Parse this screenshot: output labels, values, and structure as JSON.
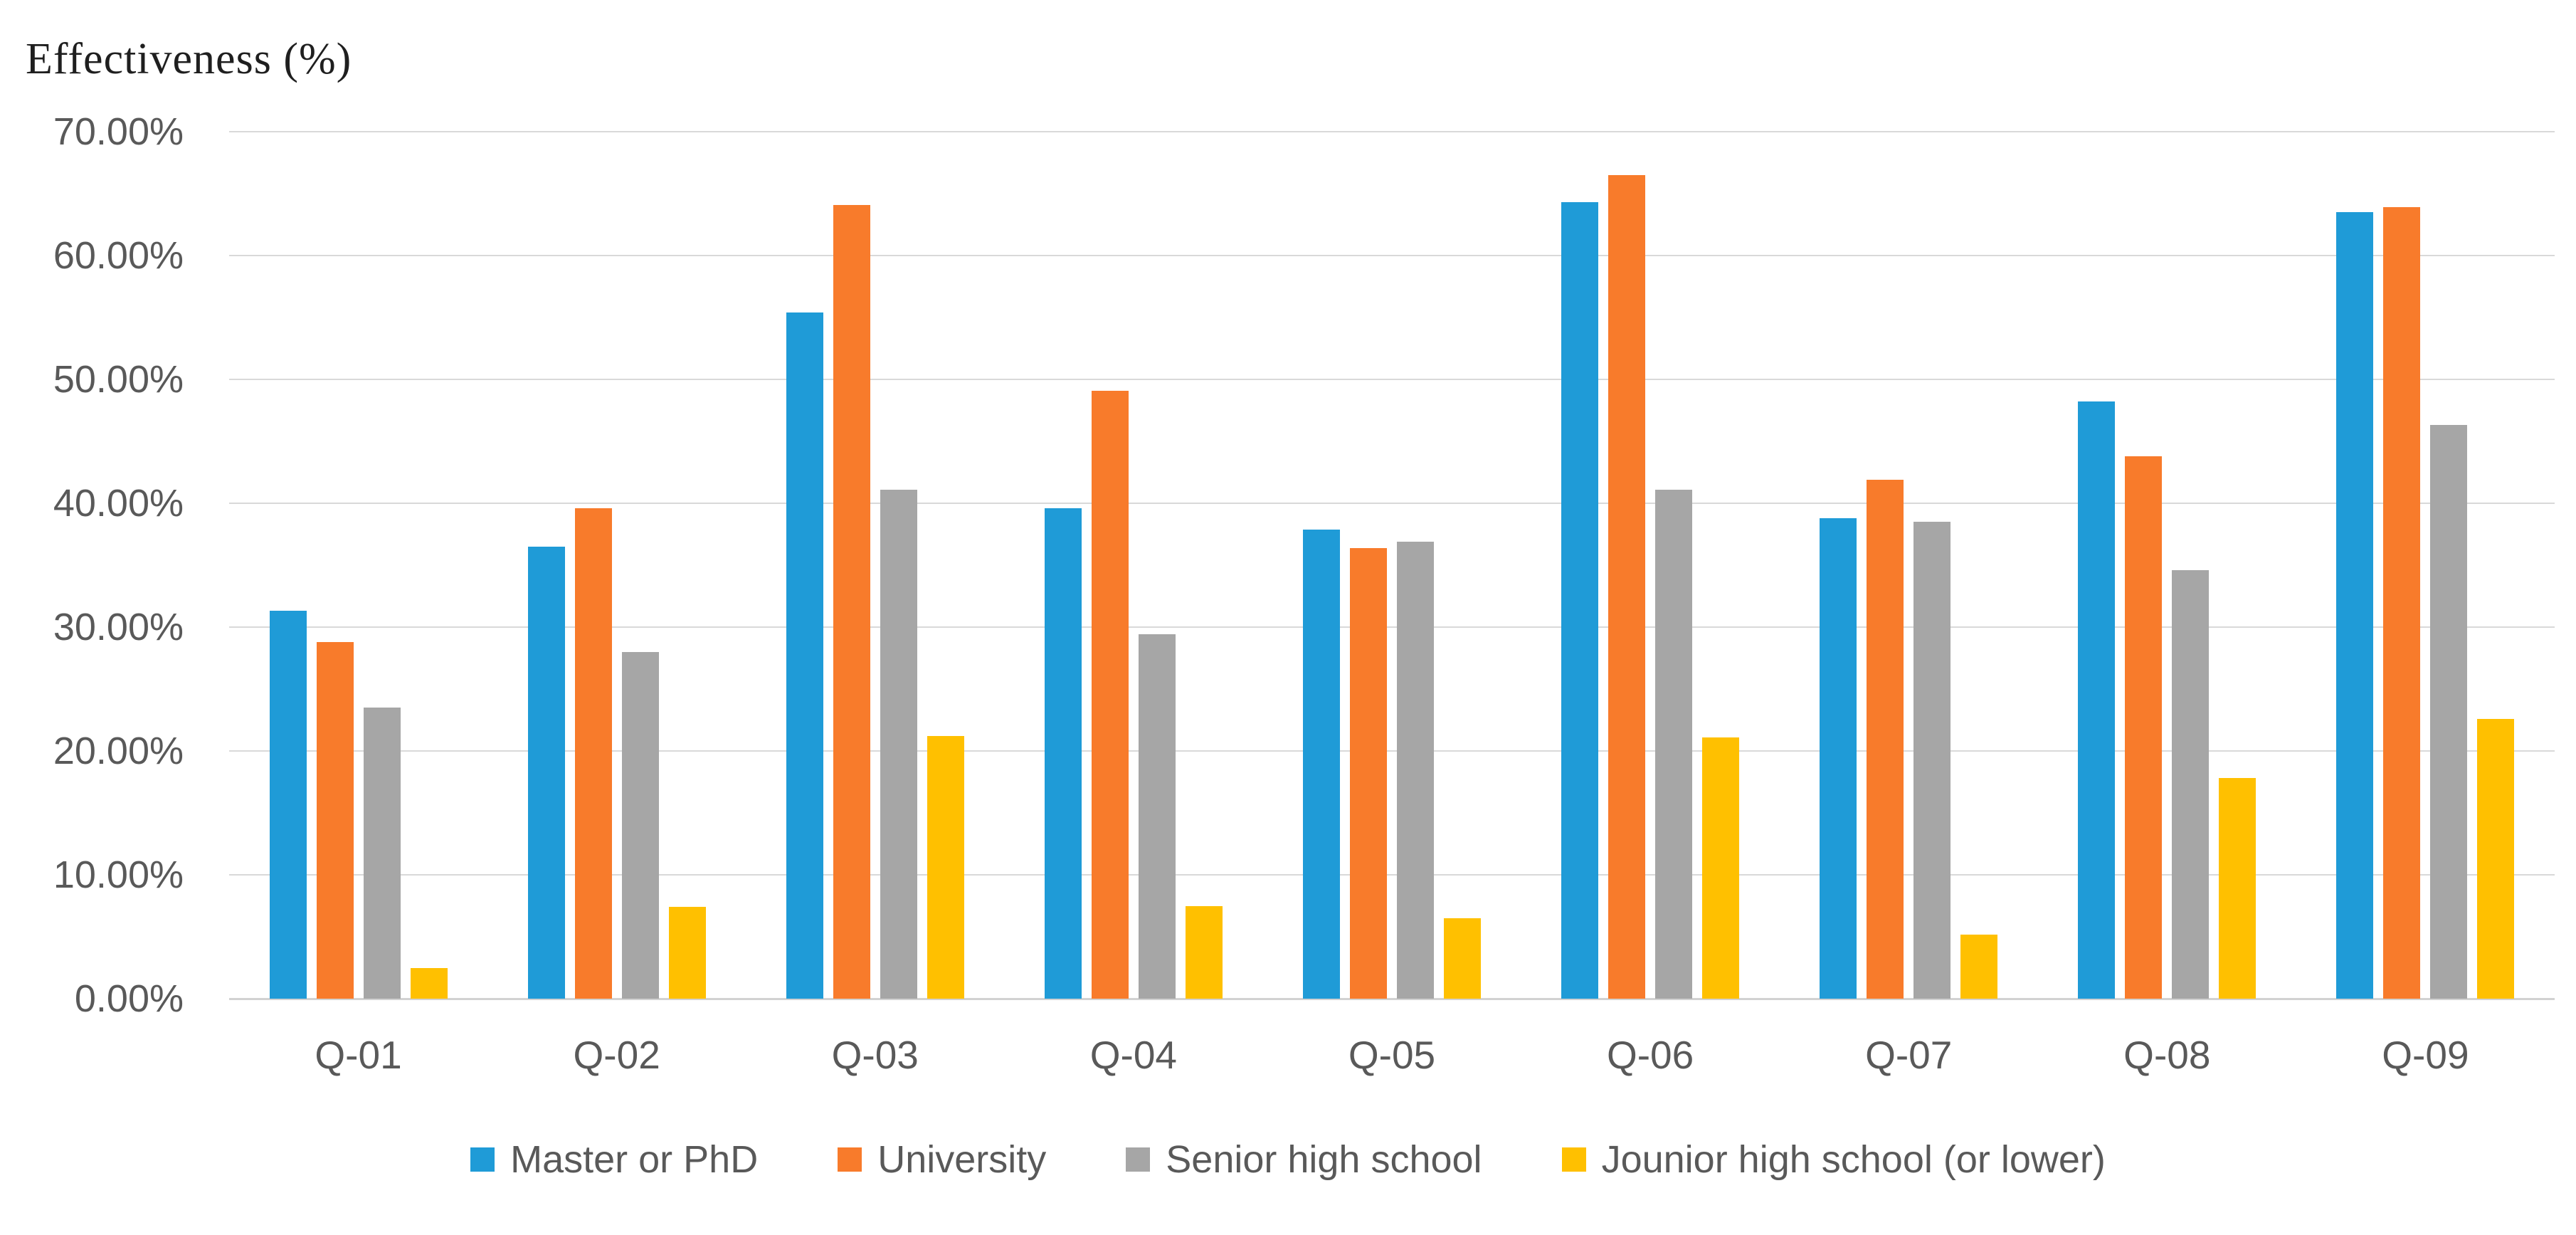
{
  "title": "Effectiveness (%)",
  "axis": {
    "ytick_labels": [
      "70.00%",
      "60.00%",
      "50.00%",
      "40.00%",
      "30.00%",
      "20.00%",
      "10.00%",
      "0.00%"
    ]
  },
  "colors": {
    "background": "#FFFFFF",
    "gridline": "#D9D9D9",
    "axis_line": "#D2D2D2",
    "tick_text": "#595959",
    "title_text": "#1F1F1F",
    "series_blue": "#1F9BD7",
    "series_orange": "#F87B2B",
    "series_gray": "#A6A6A6",
    "series_yellow": "#FFC000"
  },
  "chart_data": {
    "type": "bar",
    "title": "Effectiveness (%)",
    "ylabel": "Effectiveness (%)",
    "xlabel": "",
    "ylim": [
      0,
      70
    ],
    "ytick_step": 10,
    "grid": true,
    "legend_position": "bottom",
    "categories": [
      "Q-01",
      "Q-02",
      "Q-03",
      "Q-04",
      "Q-05",
      "Q-06",
      "Q-07",
      "Q-08",
      "Q-09"
    ],
    "series": [
      {
        "name": "Master or PhD",
        "color": "#1F9BD7",
        "values": [
          31.3,
          36.5,
          55.4,
          39.6,
          37.9,
          64.3,
          38.8,
          48.2,
          63.5
        ]
      },
      {
        "name": "University",
        "color": "#F87B2B",
        "values": [
          28.8,
          39.6,
          64.1,
          49.1,
          36.4,
          66.5,
          41.9,
          43.8,
          63.9
        ]
      },
      {
        "name": "Senior high school",
        "color": "#A6A6A6",
        "values": [
          23.5,
          28.0,
          41.1,
          29.4,
          36.9,
          41.1,
          38.5,
          34.6,
          46.3
        ]
      },
      {
        "name": "Jounior high school (or lower)",
        "color": "#FFC000",
        "values": [
          2.5,
          7.4,
          21.2,
          7.5,
          6.5,
          21.1,
          5.2,
          17.8,
          22.6
        ]
      }
    ]
  }
}
